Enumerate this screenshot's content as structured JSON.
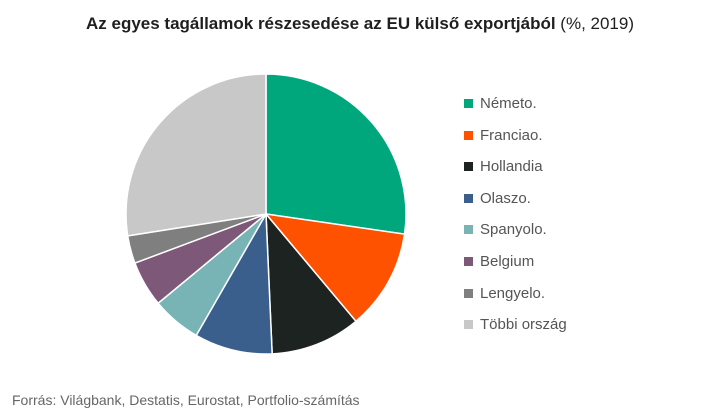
{
  "chart_data": {
    "type": "pie",
    "title_bold": "Az egyes tagállamok részesedése az EU külső exportjából",
    "title_rest": " (%, 2019)",
    "slices": [
      {
        "name": "Németo.",
        "value": 27.3,
        "color": "#00a77d"
      },
      {
        "name": "Franciao.",
        "value": 11.6,
        "color": "#ff5200"
      },
      {
        "name": "Hollandia",
        "value": 10.4,
        "color": "#1d2320"
      },
      {
        "name": "Olaszo.",
        "value": 9.0,
        "color": "#3b5f8d"
      },
      {
        "name": "Spanyolo.",
        "value": 5.7,
        "color": "#78b4b6"
      },
      {
        "name": "Belgium",
        "value": 5.3,
        "color": "#7d5878"
      },
      {
        "name": "Lengyelo.",
        "value": 3.2,
        "color": "#7f7f7f"
      },
      {
        "name": "Többi ország",
        "value": 27.5,
        "color": "#c8c8c8"
      }
    ],
    "legend_position": "right"
  },
  "source": "Forrás: Világbank, Destatis, Eurostat, Portfolio-számítás"
}
